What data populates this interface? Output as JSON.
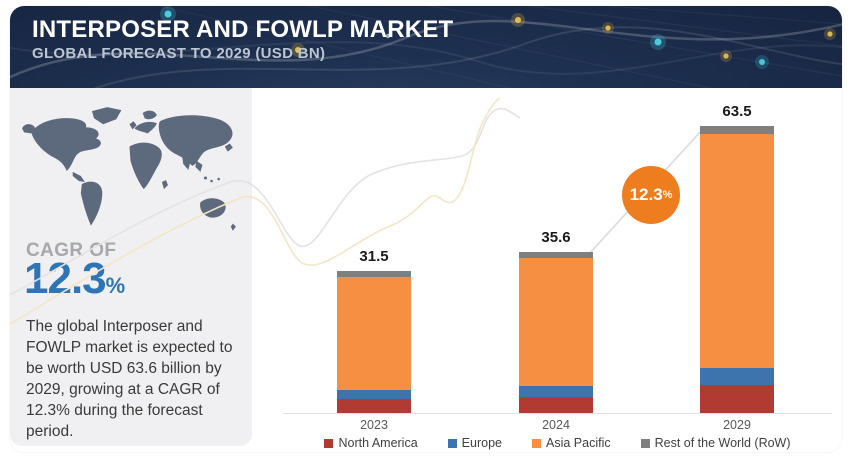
{
  "header": {
    "title": "INTERPOSER AND FOWLP MARKET",
    "subtitle": "GLOBAL FORECAST TO 2029 (USD BN)"
  },
  "sidebar": {
    "cagr_label": "CAGR OF",
    "cagr_value": "12.3",
    "cagr_unit": "%",
    "description": "The global Interposer and FOWLP market is expected to be worth USD 63.6 billion by 2029, growing at a CAGR of 12.3% during the forecast period."
  },
  "badge": {
    "value": "12.3",
    "unit": "%",
    "color": "#ee7d1f"
  },
  "colors": {
    "header_bg": "#1e3050",
    "panel_bg": "#f0eff1",
    "map": "#5d6a7d",
    "cagr_blue": "#2e75b6",
    "axis": "#e1e1e1",
    "swoosh_gray": "#e3e3e3",
    "swoosh_cream": "#f2e6c5",
    "trend_line": "#dedede"
  },
  "chart_data": {
    "type": "bar",
    "stacked": true,
    "title": "INTERPOSER AND FOWLP MARKET",
    "subtitle": "GLOBAL FORECAST TO 2029 (USD BN)",
    "ylabel": "USD BN",
    "grid": false,
    "legend_position": "bottom",
    "categories": [
      "2023",
      "2024",
      "2029"
    ],
    "series": [
      {
        "name": "North America",
        "color": "#b13a33",
        "values": [
          3.0,
          3.6,
          6.2
        ]
      },
      {
        "name": "Europe",
        "color": "#3e74ae",
        "values": [
          2.2,
          2.4,
          3.8
        ]
      },
      {
        "name": "Asia Pacific",
        "color": "#f78f43",
        "values": [
          25.0,
          28.3,
          51.7
        ]
      },
      {
        "name": "Rest of the World (RoW)",
        "color": "#7f7f7f",
        "values": [
          1.3,
          1.3,
          1.8
        ]
      }
    ],
    "totals": [
      31.5,
      35.6,
      63.5
    ],
    "total_labels": [
      "31.5",
      "35.6",
      "63.5"
    ],
    "annotation": {
      "text": "12.3",
      "unit": "%",
      "meaning": "CAGR 2024-2029"
    }
  }
}
